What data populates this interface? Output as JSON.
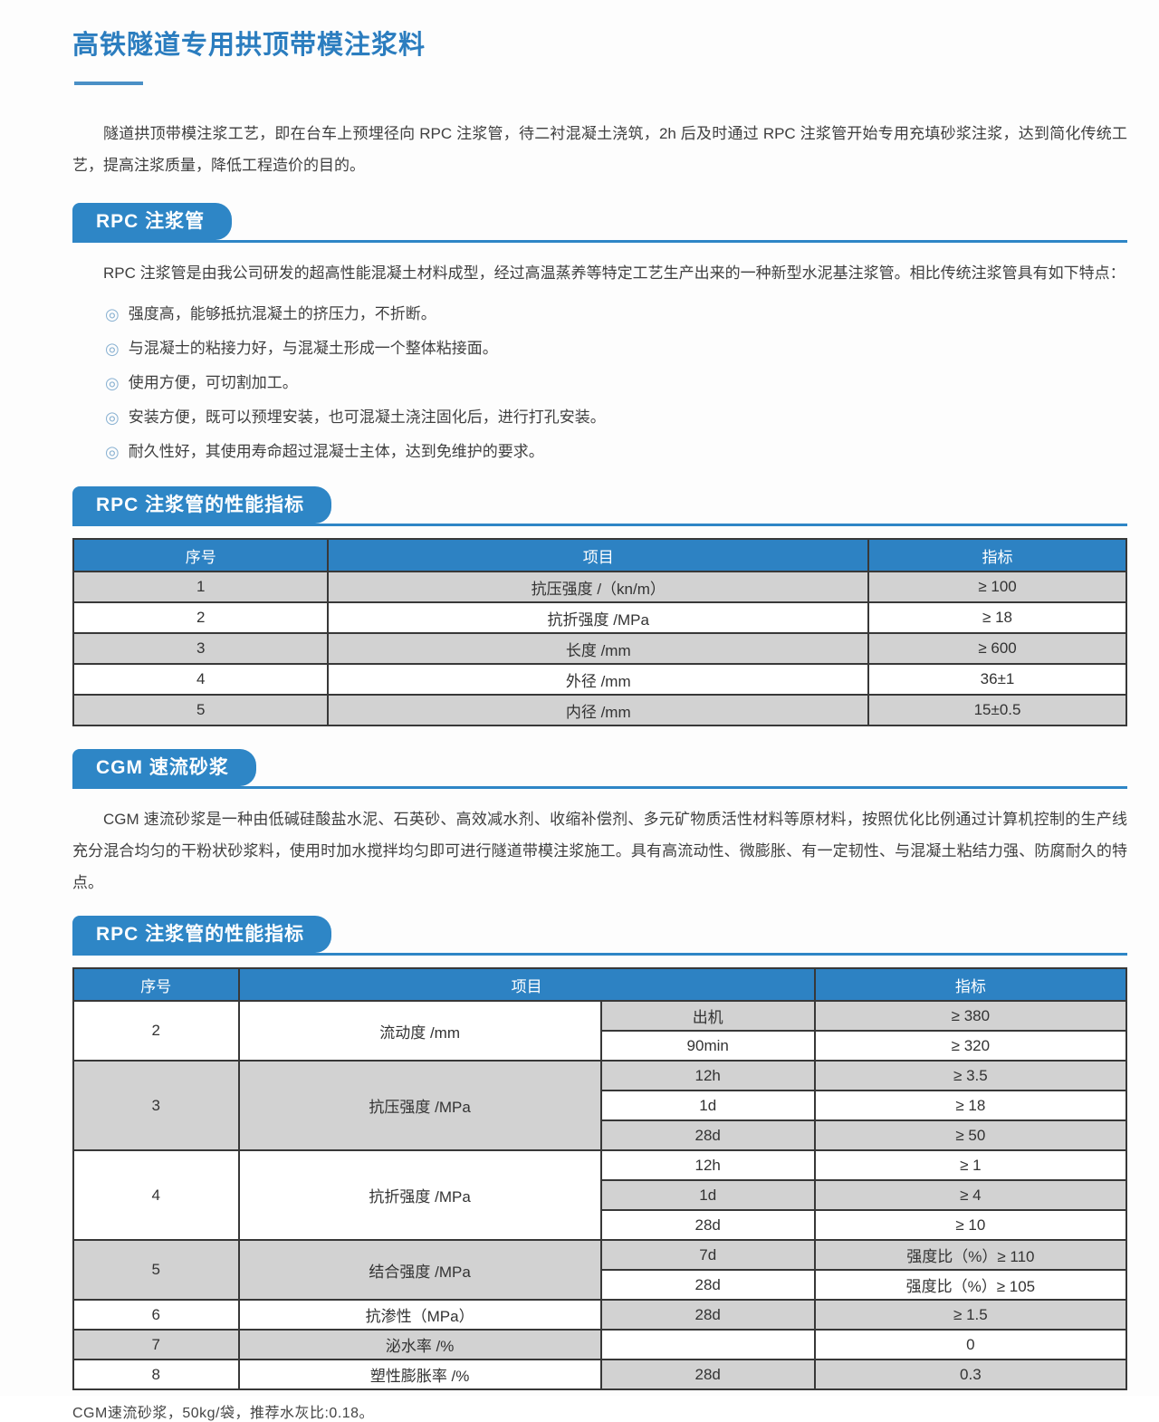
{
  "colors": {
    "accent_blue": "#2e86c6",
    "table_header_blue": "#2d82c3",
    "row_gray": "#d2d2d2",
    "title_blue": "#2b7dbf",
    "bullet_blue": "#8ab2d2",
    "border_dark": "#383838"
  },
  "title": "高铁隧道专用拱顶带模注浆料",
  "intro": "隧道拱顶带模注浆工艺，即在台车上预埋径向 RPC 注浆管，待二衬混凝土浇筑，2h 后及时通过 RPC 注浆管开始专用充填砂浆注浆，达到简化传统工艺，提高注浆质量，降低工程造价的目的。",
  "rpc_section": {
    "badge": "RPC 注浆管",
    "paragraph": "RPC 注浆管是由我公司研发的超高性能混凝土材料成型，经过高温蒸养等特定工艺生产出来的一种新型水泥基注浆管。相比传统注浆管具有如下特点：",
    "bullet_marker": "◎",
    "bullets": [
      "强度高，能够抵抗混凝土的挤压力，不折断。",
      "与混凝士的粘接力好，与混凝土形成一个整体粘接面。",
      "使用方便，可切割加工。",
      "安装方便，既可以预埋安装，也可混凝土浇注固化后，进行打孔安装。",
      "耐久性好，其使用寿命超过混凝士主体，达到免维护的要求。"
    ]
  },
  "table1_section": {
    "badge": "RPC 注浆管的性能指标",
    "table": {
      "headers": [
        "序号",
        "项目",
        "指标"
      ],
      "col_widths": [
        "24.2%",
        "51.3%",
        "24.5%"
      ],
      "rows": [
        [
          "1",
          "抗压强度 /（kn/m）",
          "≥ 100"
        ],
        [
          "2",
          "抗折强度 /MPa",
          "≥ 18"
        ],
        [
          "3",
          "长度 /mm",
          "≥ 600"
        ],
        [
          "4",
          "外径 /mm",
          "36±1"
        ],
        [
          "5",
          "内径 /mm",
          "15±0.5"
        ]
      ]
    }
  },
  "cgm_section": {
    "badge": "CGM 速流砂浆",
    "paragraph": "CGM 速流砂浆是一种由低碱硅酸盐水泥、石英砂、高效减水剂、收缩补偿剂、多元矿物质活性材料等原材料，按照优化比例通过计算机控制的生产线充分混合均匀的干粉状砂浆料，使用时加水搅拌均匀即可进行隧道带模注浆施工。具有高流动性、微膨胀、有一定韧性、与混凝土粘结力强、防腐耐久的特点。"
  },
  "table2_section": {
    "badge": "RPC 注浆管的性能指标",
    "table": {
      "headers": [
        "序号",
        "项目",
        "指标"
      ],
      "col_widths": [
        "15.7%",
        "34.4%",
        "20.3%",
        "29.6%"
      ],
      "groups": [
        {
          "no": "2",
          "item": "流动度 /mm",
          "subs": [
            {
              "cond": "出机",
              "val": "≥ 380"
            },
            {
              "cond": "90min",
              "val": "≥ 320"
            }
          ]
        },
        {
          "no": "3",
          "item": "抗压强度 /MPa",
          "subs": [
            {
              "cond": "12h",
              "val": "≥ 3.5"
            },
            {
              "cond": "1d",
              "val": "≥ 18"
            },
            {
              "cond": "28d",
              "val": "≥ 50"
            }
          ]
        },
        {
          "no": "4",
          "item": "抗折强度 /MPa",
          "subs": [
            {
              "cond": "12h",
              "val": "≥ 1"
            },
            {
              "cond": "1d",
              "val": "≥ 4"
            },
            {
              "cond": "28d",
              "val": "≥ 10"
            }
          ]
        },
        {
          "no": "5",
          "item": "结合强度 /MPa",
          "subs": [
            {
              "cond": "7d",
              "val": "强度比（%）≥ 110"
            },
            {
              "cond": "28d",
              "val": "强度比（%）≥ 105"
            }
          ]
        },
        {
          "no": "6",
          "item": "抗渗性（MPa）",
          "subs": [
            {
              "cond": "28d",
              "val": "≥ 1.5"
            }
          ]
        },
        {
          "no": "7",
          "item": "泌水率 /%",
          "subs": [
            {
              "cond": "",
              "val": "0"
            }
          ]
        },
        {
          "no": "8",
          "item": "塑性膨胀率 /%",
          "subs": [
            {
              "cond": "28d",
              "val": "0.3"
            }
          ]
        }
      ]
    }
  },
  "footnote": "CGM速流砂浆，50kg/袋，推荐水灰比:0.18。"
}
